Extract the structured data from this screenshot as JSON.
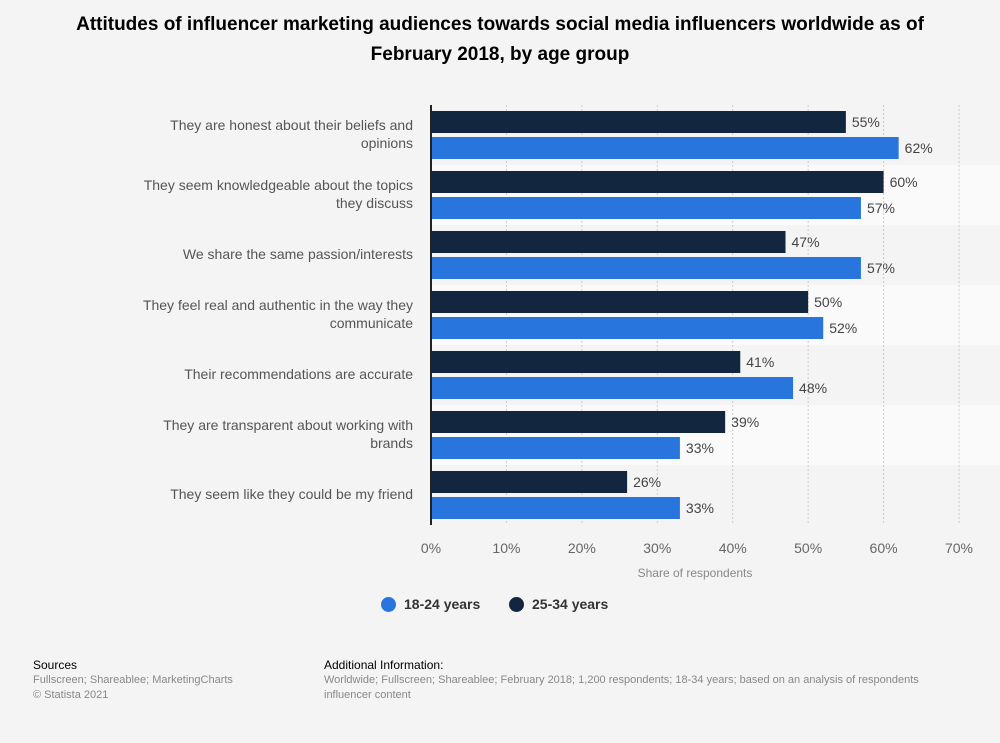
{
  "chart_data": {
    "type": "bar",
    "orientation": "horizontal",
    "title": "Attitudes of influencer marketing audiences towards social media influencers worldwide as of February 2018, by age group",
    "xlabel": "Share of respondents",
    "xlim": [
      0,
      70
    ],
    "xticks": [
      "0%",
      "10%",
      "20%",
      "30%",
      "40%",
      "50%",
      "60%",
      "70%"
    ],
    "grid": true,
    "legend_position": "bottom",
    "categories": [
      "They are honest about their beliefs and opinions",
      "They seem knowledgeable about the topics they discuss",
      "We share the same passion/interests",
      "They feel real and authentic in the way they communicate",
      "Their recommendations are accurate",
      "They are transparent about working with brands",
      "They seem like they could be my friend"
    ],
    "series": [
      {
        "name": "25-34 years",
        "color": "#12263f",
        "values": [
          55,
          60,
          47,
          50,
          41,
          39,
          26
        ]
      },
      {
        "name": "18-24 years",
        "color": "#2876dd",
        "values": [
          62,
          57,
          57,
          52,
          48,
          33,
          33
        ]
      }
    ]
  },
  "legend": [
    "18-24 years",
    "25-34 years"
  ],
  "footer": {
    "sources_heading": "Sources",
    "sources": "Fullscreen; Shareablee; MarketingCharts",
    "copyright": "© Statista 2021",
    "info_heading": "Additional Information:",
    "info_line1": "Worldwide; Fullscreen; Shareablee; February 2018; 1,200 respondents; 18-34 years; based on an analysis of respondents",
    "info_line2": "influencer content"
  }
}
